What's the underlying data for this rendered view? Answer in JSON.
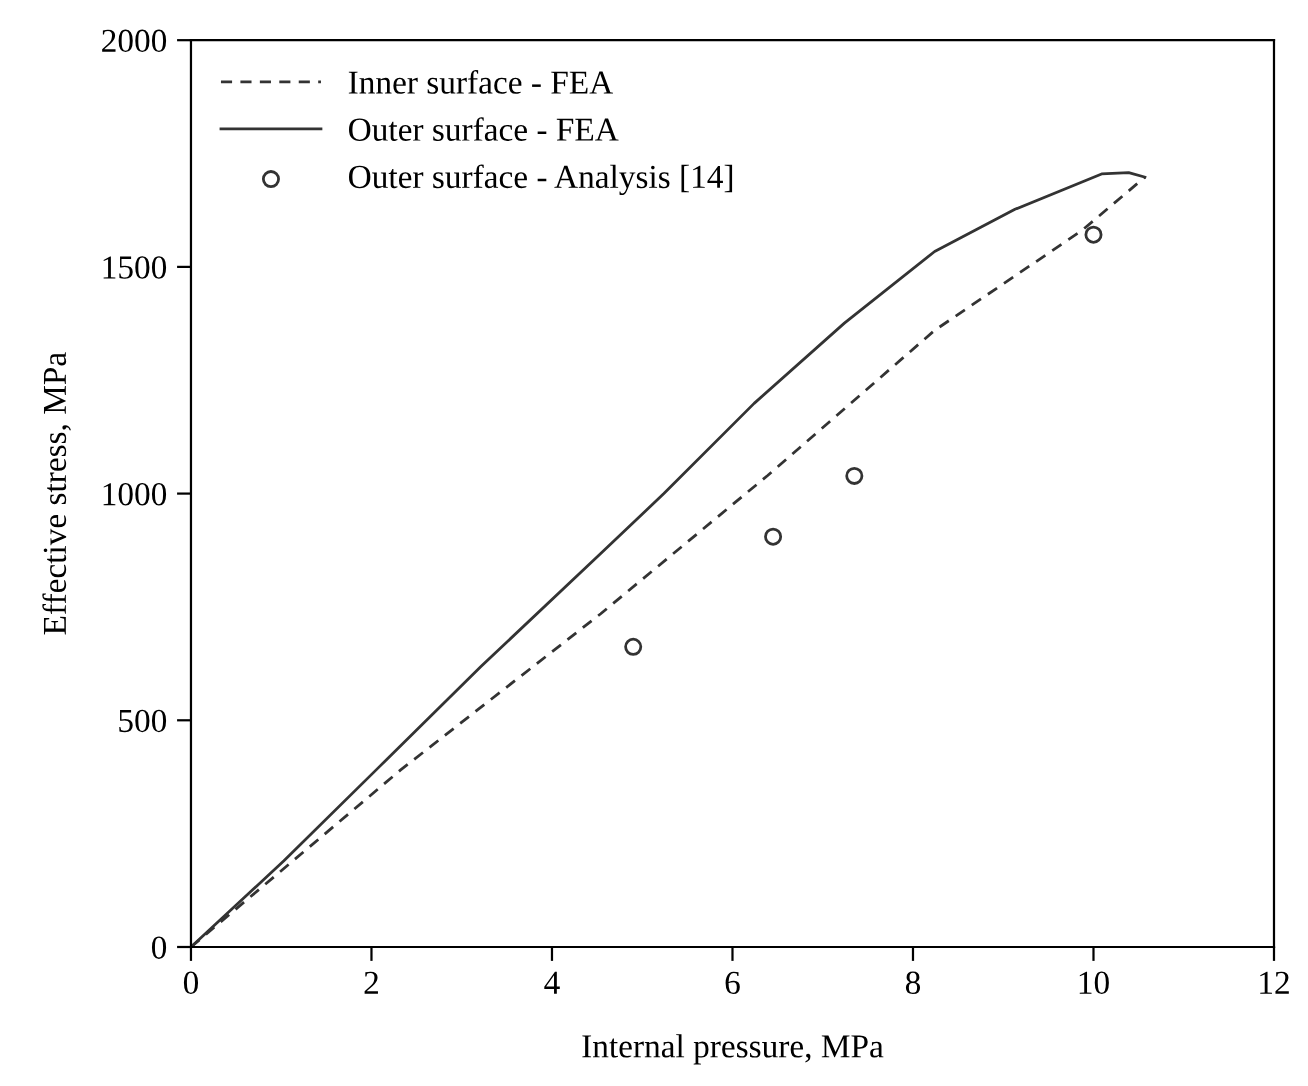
{
  "chart_data": {
    "type": "line",
    "xlabel": "Internal pressure, MPa",
    "ylabel": "Effective stress, MPa",
    "xlim": [
      0,
      12
    ],
    "ylim": [
      0,
      2000
    ],
    "xticks": [
      0,
      2,
      4,
      6,
      8,
      10,
      12
    ],
    "yticks": [
      0,
      500,
      1000,
      1500,
      2000
    ],
    "grid": false,
    "legend": "top left",
    "series": [
      {
        "name": "Inner surface - FEA",
        "line_style": "dashed",
        "marker": "none",
        "color": "#333333",
        "x": [
          0,
          2.32,
          4.54,
          6.39,
          8.24,
          9.87,
          10.57
        ],
        "values": [
          0,
          390,
          735,
          1040,
          1360,
          1580,
          1698
        ]
      },
      {
        "name": "Outer surface - FEA",
        "line_style": "solid",
        "marker": "none",
        "color": "#333333",
        "x": [
          0,
          1.03,
          2.1,
          3.21,
          4.54,
          5.24,
          6.24,
          7.24,
          8.24,
          9.13,
          10.09,
          10.39,
          10.57
        ],
        "values": [
          0,
          190,
          400,
          618,
          868,
          1000,
          1199,
          1376,
          1534,
          1627,
          1705,
          1708,
          1698
        ]
      },
      {
        "name": "Outer surface - Analysis [14]",
        "type": "scatter",
        "marker": "circle",
        "color": "#333333",
        "x": [
          4.9,
          6.45,
          7.35,
          10.0
        ],
        "values": [
          662,
          905,
          1039,
          1571
        ]
      }
    ]
  }
}
